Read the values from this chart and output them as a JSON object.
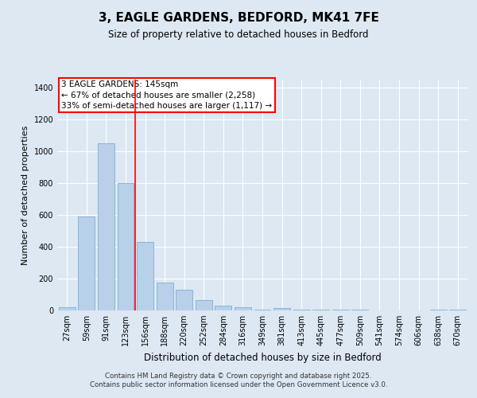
{
  "title_line1": "3, EAGLE GARDENS, BEDFORD, MK41 7FE",
  "title_line2": "Size of property relative to detached houses in Bedford",
  "xlabel": "Distribution of detached houses by size in Bedford",
  "ylabel": "Number of detached properties",
  "bar_labels": [
    "27sqm",
    "59sqm",
    "91sqm",
    "123sqm",
    "156sqm",
    "188sqm",
    "220sqm",
    "252sqm",
    "284sqm",
    "316sqm",
    "349sqm",
    "381sqm",
    "413sqm",
    "445sqm",
    "477sqm",
    "509sqm",
    "541sqm",
    "574sqm",
    "606sqm",
    "638sqm",
    "670sqm"
  ],
  "bar_values": [
    20,
    590,
    1050,
    800,
    430,
    175,
    130,
    65,
    30,
    20,
    5,
    15,
    5,
    5,
    5,
    5,
    0,
    0,
    0,
    5,
    5
  ],
  "bar_color": "#b8d0ea",
  "bar_edgecolor": "#7aafd4",
  "red_line_x": 3.5,
  "ylim": [
    0,
    1450
  ],
  "yticks": [
    0,
    200,
    400,
    600,
    800,
    1000,
    1200,
    1400
  ],
  "annotation_text_line1": "3 EAGLE GARDENS: 145sqm",
  "annotation_text_line2": "← 67% of detached houses are smaller (2,258)",
  "annotation_text_line3": "33% of semi-detached houses are larger (1,117) →",
  "footer_line1": "Contains HM Land Registry data © Crown copyright and database right 2025.",
  "footer_line2": "Contains public sector information licensed under the Open Government Licence v3.0.",
  "bg_color": "#dde8f3",
  "plot_bg_color": "#dde8f3"
}
